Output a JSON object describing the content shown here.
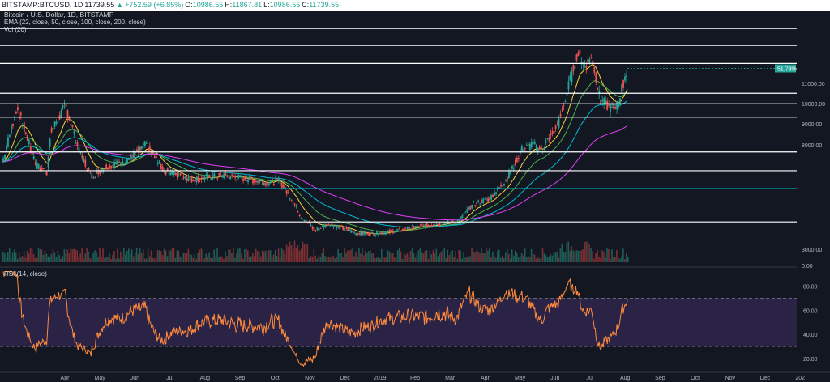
{
  "header": {
    "symbol": "BITSTAMP:BTCUSD, 1D",
    "last": "11739.55",
    "arrow": "▲",
    "change": "+752.59 (+6.85%)",
    "open_label": "O:",
    "open": "10986.55",
    "high_label": "H:",
    "high": "11867.81",
    "low_label": "L:",
    "low": "10986.55",
    "close_label": "C:",
    "close": "11739.55"
  },
  "legend": {
    "title": "Bitcoin / U.S. Dollar, 1D, BITSTAMP",
    "ema": "EMA (22, close, 50, close, 100, close, 200, close)",
    "vol": "Vol (20)"
  },
  "rsi": {
    "label": "RSI (14, close)",
    "ticks": [
      "80.00",
      "60.00",
      "40.00",
      "20.00"
    ],
    "tick_values": [
      80,
      60,
      40,
      20
    ],
    "upper": 70,
    "lower": 30,
    "range": [
      10,
      95
    ]
  },
  "price_axis": {
    "ticks": [
      "11000.00",
      "10000.00",
      "9000.00",
      "8000.00",
      "3000.00",
      "0.00"
    ],
    "tick_values": [
      11000,
      10000,
      9000,
      8000,
      3000,
      0
    ]
  },
  "levels": [
    {
      "label": "13862.58",
      "value": 13862.58,
      "color": "#ffffff"
    },
    {
      "label": "12951.13",
      "value": 12951.13,
      "color": "#ffffff"
    },
    {
      "label": "11986.07",
      "value": 11986.07,
      "color": "#ffffff"
    },
    {
      "label": "10509.96",
      "value": 10509.96,
      "color": "#ffffff"
    },
    {
      "label": "9991.75",
      "value": 9991.75,
      "color": "#ffffff"
    },
    {
      "label": "9327.11",
      "value": 9327.11,
      "color": "#ffffff"
    },
    {
      "label": "7663.48",
      "value": 7663.48,
      "color": "#ffffff"
    },
    {
      "label": "6770.79",
      "value": 6770.79,
      "color": "#ffffff"
    },
    {
      "label": "5906.04",
      "value": 5906.04,
      "color": "#00bcd4"
    },
    {
      "label": "4200.37",
      "value": 4200.37,
      "color": "#ffffff"
    }
  ],
  "current_price": {
    "label": "11739.55",
    "value": 11739.55,
    "pct": "51.73%",
    "color": "#26a69a"
  },
  "time_axis": [
    "Apr",
    "May",
    "Jun",
    "Jul",
    "Aug",
    "Sep",
    "Oct",
    "Nov",
    "Dec",
    "2019",
    "Feb",
    "Mar",
    "Apr",
    "May",
    "Jun",
    "Jul",
    "Aug",
    "Sep",
    "Oct",
    "Nov",
    "Dec",
    "202"
  ],
  "colors": {
    "up": "#26a69a",
    "down": "#ef5350",
    "ema22": "#f5d33a",
    "ema50": "#4caf50",
    "ema100": "#00bcd4",
    "ema200": "#e040fb",
    "rsi": "#ff8a3d"
  }
}
